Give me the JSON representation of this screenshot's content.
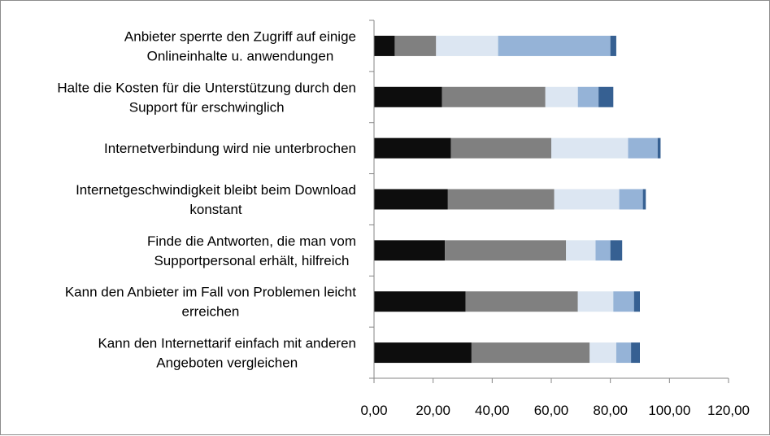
{
  "chart_data": {
    "type": "bar",
    "orientation": "horizontal",
    "stacked": true,
    "title": "",
    "xlabel": "",
    "ylabel": "",
    "xlim": [
      0,
      120
    ],
    "ticks": [
      "0,00",
      "20,00",
      "40,00",
      "60,00",
      "80,00",
      "100,00",
      "120,00"
    ],
    "grid": false,
    "legend": "none",
    "categories": [
      [
        "Anbieter sperrte den Zugriff auf einige",
        "Onlineinhalte u. anwendungen"
      ],
      [
        "Halte die Kosten für die Unterstützung durch den",
        "Support für erschwinglich"
      ],
      [
        "Internetverbindung wird nie unterbrochen"
      ],
      [
        "Internetgeschwindigkeit bleibt beim Download",
        "konstant"
      ],
      [
        "Finde die Antworten, die man vom",
        "Supportpersonal erhält, hilfreich"
      ],
      [
        "Kann den Anbieter im Fall von Problemen leicht",
        "erreichen"
      ],
      [
        "Kann den Internettarif einfach mit anderen",
        "Angeboten vergleichen"
      ]
    ],
    "series": [
      {
        "color": "#0d0d0d",
        "values": [
          7,
          23,
          26,
          25,
          24,
          31,
          33
        ]
      },
      {
        "color": "#808080",
        "values": [
          14,
          35,
          34,
          36,
          41,
          38,
          40
        ]
      },
      {
        "color": "#dce6f2",
        "values": [
          21,
          11,
          26,
          22,
          10,
          12,
          9
        ]
      },
      {
        "color": "#95b3d7",
        "values": [
          38,
          7,
          10,
          8,
          5,
          7,
          5
        ]
      },
      {
        "color": "#366092",
        "values": [
          2,
          5,
          1,
          1,
          4,
          2,
          3
        ]
      }
    ]
  }
}
